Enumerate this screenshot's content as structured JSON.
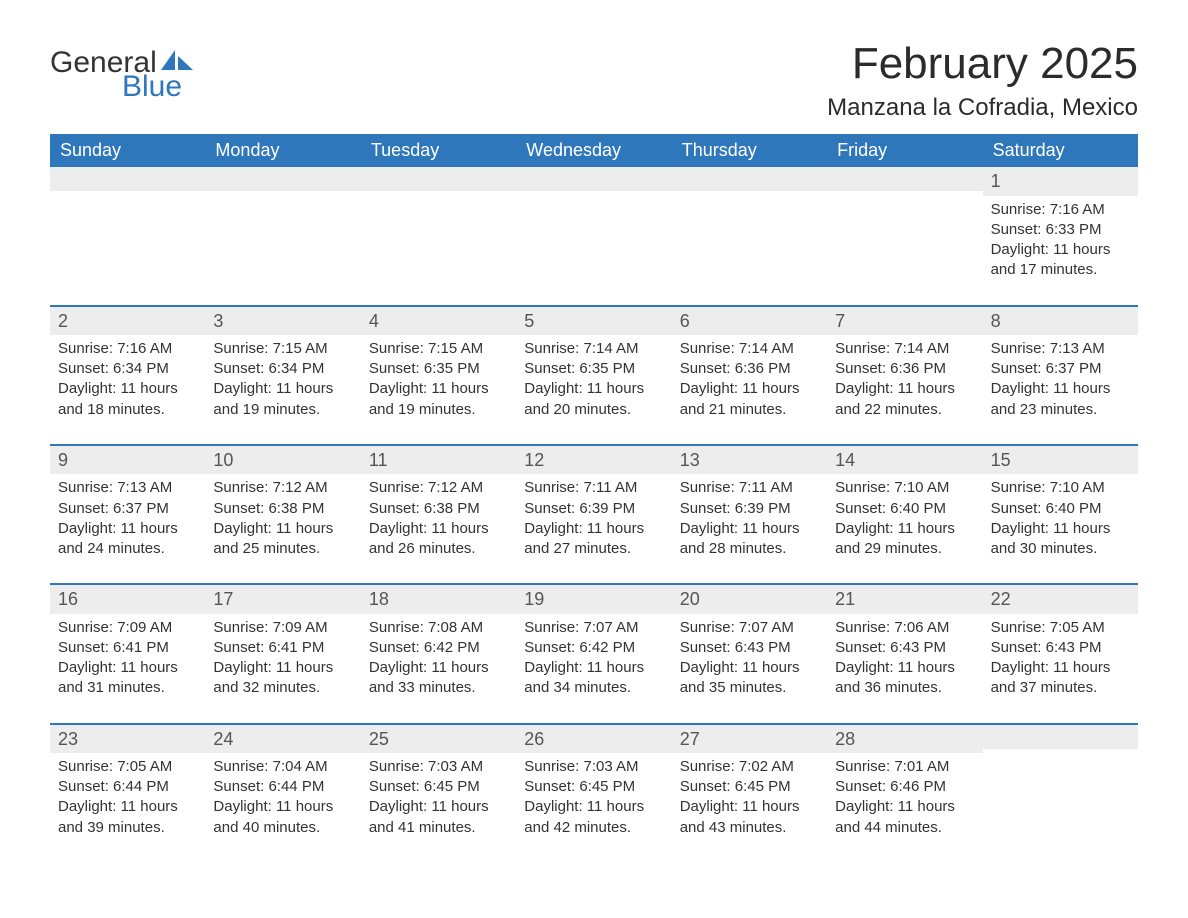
{
  "logo": {
    "text1": "General",
    "text2": "Blue"
  },
  "title": "February 2025",
  "location": "Manzana la Cofradia, Mexico",
  "colors": {
    "primary": "#2f77bb",
    "row_bg": "#ededed",
    "text": "#333333",
    "background": "#ffffff"
  },
  "day_names": [
    "Sunday",
    "Monday",
    "Tuesday",
    "Wednesday",
    "Thursday",
    "Friday",
    "Saturday"
  ],
  "weeks": [
    [
      null,
      null,
      null,
      null,
      null,
      null,
      {
        "d": 1,
        "sr": "7:16 AM",
        "ss": "6:33 PM",
        "dl": "11 hours and 17 minutes."
      }
    ],
    [
      {
        "d": 2,
        "sr": "7:16 AM",
        "ss": "6:34 PM",
        "dl": "11 hours and 18 minutes."
      },
      {
        "d": 3,
        "sr": "7:15 AM",
        "ss": "6:34 PM",
        "dl": "11 hours and 19 minutes."
      },
      {
        "d": 4,
        "sr": "7:15 AM",
        "ss": "6:35 PM",
        "dl": "11 hours and 19 minutes."
      },
      {
        "d": 5,
        "sr": "7:14 AM",
        "ss": "6:35 PM",
        "dl": "11 hours and 20 minutes."
      },
      {
        "d": 6,
        "sr": "7:14 AM",
        "ss": "6:36 PM",
        "dl": "11 hours and 21 minutes."
      },
      {
        "d": 7,
        "sr": "7:14 AM",
        "ss": "6:36 PM",
        "dl": "11 hours and 22 minutes."
      },
      {
        "d": 8,
        "sr": "7:13 AM",
        "ss": "6:37 PM",
        "dl": "11 hours and 23 minutes."
      }
    ],
    [
      {
        "d": 9,
        "sr": "7:13 AM",
        "ss": "6:37 PM",
        "dl": "11 hours and 24 minutes."
      },
      {
        "d": 10,
        "sr": "7:12 AM",
        "ss": "6:38 PM",
        "dl": "11 hours and 25 minutes."
      },
      {
        "d": 11,
        "sr": "7:12 AM",
        "ss": "6:38 PM",
        "dl": "11 hours and 26 minutes."
      },
      {
        "d": 12,
        "sr": "7:11 AM",
        "ss": "6:39 PM",
        "dl": "11 hours and 27 minutes."
      },
      {
        "d": 13,
        "sr": "7:11 AM",
        "ss": "6:39 PM",
        "dl": "11 hours and 28 minutes."
      },
      {
        "d": 14,
        "sr": "7:10 AM",
        "ss": "6:40 PM",
        "dl": "11 hours and 29 minutes."
      },
      {
        "d": 15,
        "sr": "7:10 AM",
        "ss": "6:40 PM",
        "dl": "11 hours and 30 minutes."
      }
    ],
    [
      {
        "d": 16,
        "sr": "7:09 AM",
        "ss": "6:41 PM",
        "dl": "11 hours and 31 minutes."
      },
      {
        "d": 17,
        "sr": "7:09 AM",
        "ss": "6:41 PM",
        "dl": "11 hours and 32 minutes."
      },
      {
        "d": 18,
        "sr": "7:08 AM",
        "ss": "6:42 PM",
        "dl": "11 hours and 33 minutes."
      },
      {
        "d": 19,
        "sr": "7:07 AM",
        "ss": "6:42 PM",
        "dl": "11 hours and 34 minutes."
      },
      {
        "d": 20,
        "sr": "7:07 AM",
        "ss": "6:43 PM",
        "dl": "11 hours and 35 minutes."
      },
      {
        "d": 21,
        "sr": "7:06 AM",
        "ss": "6:43 PM",
        "dl": "11 hours and 36 minutes."
      },
      {
        "d": 22,
        "sr": "7:05 AM",
        "ss": "6:43 PM",
        "dl": "11 hours and 37 minutes."
      }
    ],
    [
      {
        "d": 23,
        "sr": "7:05 AM",
        "ss": "6:44 PM",
        "dl": "11 hours and 39 minutes."
      },
      {
        "d": 24,
        "sr": "7:04 AM",
        "ss": "6:44 PM",
        "dl": "11 hours and 40 minutes."
      },
      {
        "d": 25,
        "sr": "7:03 AM",
        "ss": "6:45 PM",
        "dl": "11 hours and 41 minutes."
      },
      {
        "d": 26,
        "sr": "7:03 AM",
        "ss": "6:45 PM",
        "dl": "11 hours and 42 minutes."
      },
      {
        "d": 27,
        "sr": "7:02 AM",
        "ss": "6:45 PM",
        "dl": "11 hours and 43 minutes."
      },
      {
        "d": 28,
        "sr": "7:01 AM",
        "ss": "6:46 PM",
        "dl": "11 hours and 44 minutes."
      },
      null
    ]
  ],
  "labels": {
    "sunrise": "Sunrise:",
    "sunset": "Sunset:",
    "daylight": "Daylight:"
  }
}
